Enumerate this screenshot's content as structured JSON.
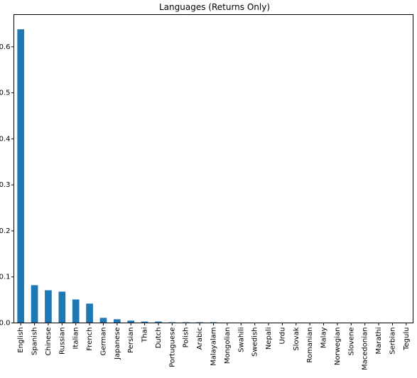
{
  "chart_data": {
    "type": "bar",
    "title": "Languages (Returns Only)",
    "xlabel": "",
    "ylabel": "",
    "ylim": [
      0,
      0.67
    ],
    "yticks": [
      0.0,
      0.1,
      0.2,
      0.3,
      0.4,
      0.5,
      0.6
    ],
    "ytick_labels": [
      "0.0",
      "0.1",
      "0.2",
      "0.3",
      "0.4",
      "0.5",
      "0.6"
    ],
    "grid": false,
    "bar_color": "#1f77b4",
    "categories": [
      "English",
      "Spanish",
      "Chinese",
      "Russian",
      "Italian",
      "French",
      "German",
      "Japanese",
      "Persian",
      "Thai",
      "Dutch",
      "Portuguese",
      "Polish",
      "Arabic",
      "Malayalam",
      "Mongolian",
      "Swahili",
      "Swedish",
      "Nepali",
      "Urdu",
      "Slovak",
      "Romanian",
      "Malay",
      "Norwegian",
      "Slovene",
      "Macedonian",
      "Marathi",
      "Serbian",
      "Tegulu"
    ],
    "values": [
      0.638,
      0.082,
      0.071,
      0.068,
      0.051,
      0.042,
      0.011,
      0.008,
      0.005,
      0.003,
      0.003,
      0.0015,
      0.0015,
      0.0015,
      0.0015,
      0.0005,
      0.0005,
      0.0005,
      0.0005,
      0.0005,
      0.0005,
      0.0005,
      0.0005,
      0.0005,
      0.0005,
      0.0005,
      0.0005,
      0.0005,
      0.0005
    ]
  }
}
